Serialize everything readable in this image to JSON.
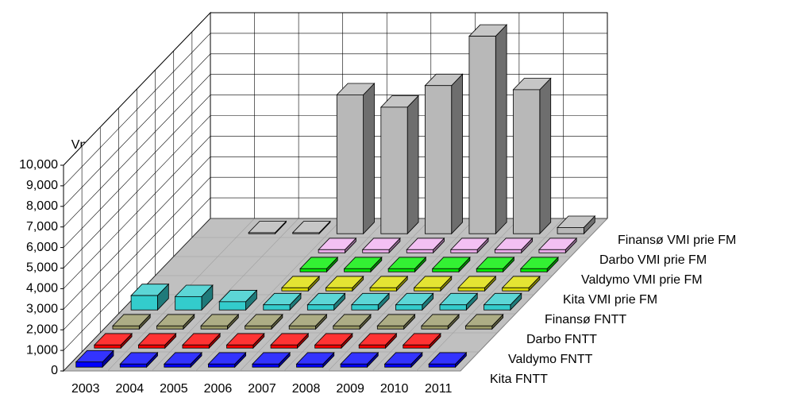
{
  "chart_data": {
    "type": "bar3d",
    "y_label": "Vnt.",
    "categories": [
      "2003",
      "2004",
      "2005",
      "2006",
      "2007",
      "2008",
      "2009",
      "2010",
      "2011"
    ],
    "series": [
      {
        "name": "Kita FNTT",
        "color": "#0000ff",
        "values": [
          250,
          150,
          150,
          150,
          150,
          150,
          150,
          150,
          150
        ]
      },
      {
        "name": "Valdymo FNTT",
        "color": "#ff0000",
        "values": [
          150,
          150,
          150,
          150,
          150,
          150,
          150,
          150,
          null
        ]
      },
      {
        "name": "Darbo FNTT",
        "color": "#999966",
        "values": [
          150,
          150,
          150,
          150,
          150,
          150,
          150,
          150,
          150
        ]
      },
      {
        "name": "Finansø FNTT",
        "color": "#33cccc",
        "values": [
          700,
          650,
          400,
          250,
          250,
          250,
          250,
          250,
          250
        ]
      },
      {
        "name": "Kita VMI prie FM",
        "color": "#dddd00",
        "values": [
          null,
          null,
          null,
          150,
          150,
          150,
          150,
          150,
          150
        ]
      },
      {
        "name": "Valdymo VMI prie FM",
        "color": "#00ee00",
        "values": [
          null,
          null,
          null,
          150,
          150,
          150,
          150,
          150,
          150
        ]
      },
      {
        "name": "Darbo VMI prie FM",
        "color": "#f0b0f0",
        "values": [
          null,
          null,
          null,
          150,
          150,
          150,
          150,
          150,
          150
        ]
      },
      {
        "name": "Finansø VMI prie FM",
        "color": "#b8b8b8",
        "values": [
          null,
          50,
          50,
          6750,
          6150,
          7200,
          9600,
          7000,
          300
        ]
      }
    ],
    "ylim": [
      0,
      10000
    ],
    "yticks": [
      0,
      {
        "value": 1000,
        "label": "1,000"
      },
      {
        "value": 2000,
        "label": "2,000"
      },
      {
        "value": 3000,
        "label": "3,000"
      },
      {
        "value": 4000,
        "label": "4,000"
      },
      {
        "value": 5000,
        "label": "5,000"
      },
      {
        "value": 6000,
        "label": "6,000"
      },
      {
        "value": 7000,
        "label": "7,000"
      },
      {
        "value": 8000,
        "label": "8,000"
      },
      {
        "value": 9000,
        "label": "9,000"
      },
      {
        "value": 10000,
        "label": "10,000"
      }
    ],
    "grid": true
  }
}
